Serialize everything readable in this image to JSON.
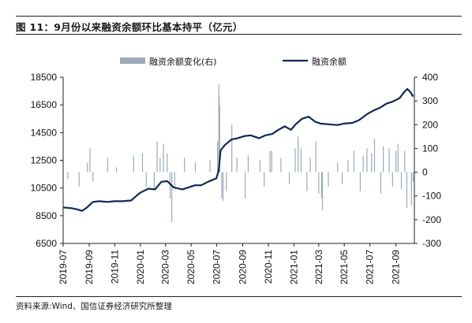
{
  "header": {
    "title": "图 11：9月份以来融资余额环比基本持平（亿元）"
  },
  "footer": {
    "source": "资料来源:Wind、国信证券经济研究所整理"
  },
  "colors": {
    "line": "#0d2a57",
    "bar": "#9aaabb"
  },
  "chart_data": {
    "type": "line+bar",
    "title": "",
    "legend": [
      {
        "name": "融资余额变化(右)",
        "type": "bar",
        "axis": "right"
      },
      {
        "name": "融资余额",
        "type": "line",
        "axis": "left"
      }
    ],
    "legend_placement": "top-center",
    "grid": false,
    "x_ticks": [
      "2019-07",
      "2019-09",
      "2019-11",
      "2020-01",
      "2020-03",
      "2020-05",
      "2020-07",
      "2020-09",
      "2020-11",
      "2021-01",
      "2021-03",
      "2021-05",
      "2021-07",
      "2021-09"
    ],
    "x_range": [
      "2019-07-01",
      "2021-10-15"
    ],
    "left_axis": {
      "ylim": [
        6500,
        18500
      ],
      "ticks": [
        6500,
        8500,
        10500,
        12500,
        14500,
        16500,
        18500
      ]
    },
    "right_axis": {
      "ylim": [
        -300,
        400
      ],
      "ticks": [
        -300,
        -200,
        -100,
        0,
        100,
        200,
        300,
        400
      ]
    },
    "series": [
      {
        "name": "融资余额",
        "axis": "left",
        "points": [
          [
            "2019-07-01",
            9100
          ],
          [
            "2019-07-20",
            9050
          ],
          [
            "2019-08-05",
            8950
          ],
          [
            "2019-08-15",
            8850
          ],
          [
            "2019-08-25",
            9050
          ],
          [
            "2019-09-10",
            9500
          ],
          [
            "2019-09-25",
            9550
          ],
          [
            "2019-10-15",
            9500
          ],
          [
            "2019-11-01",
            9550
          ],
          [
            "2019-11-20",
            9550
          ],
          [
            "2019-12-10",
            9600
          ],
          [
            "2019-12-31",
            10150
          ],
          [
            "2020-01-20",
            10450
          ],
          [
            "2020-02-05",
            10400
          ],
          [
            "2020-02-20",
            10950
          ],
          [
            "2020-03-05",
            11000
          ],
          [
            "2020-03-20",
            10550
          ],
          [
            "2020-04-10",
            10400
          ],
          [
            "2020-04-25",
            10550
          ],
          [
            "2020-05-10",
            10700
          ],
          [
            "2020-05-25",
            10700
          ],
          [
            "2020-06-10",
            10950
          ],
          [
            "2020-06-30",
            11200
          ],
          [
            "2020-07-06",
            11800
          ],
          [
            "2020-07-10",
            13200
          ],
          [
            "2020-07-20",
            13600
          ],
          [
            "2020-08-05",
            14000
          ],
          [
            "2020-08-20",
            14100
          ],
          [
            "2020-09-05",
            14250
          ],
          [
            "2020-09-20",
            14300
          ],
          [
            "2020-10-10",
            14100
          ],
          [
            "2020-10-25",
            14300
          ],
          [
            "2020-11-10",
            14400
          ],
          [
            "2020-11-25",
            14700
          ],
          [
            "2020-12-10",
            14950
          ],
          [
            "2020-12-25",
            14700
          ],
          [
            "2021-01-05",
            15100
          ],
          [
            "2021-01-20",
            15500
          ],
          [
            "2021-02-05",
            15650
          ],
          [
            "2021-02-20",
            15300
          ],
          [
            "2021-03-05",
            15150
          ],
          [
            "2021-03-25",
            15100
          ],
          [
            "2021-04-15",
            15050
          ],
          [
            "2021-04-30",
            15150
          ],
          [
            "2021-05-20",
            15200
          ],
          [
            "2021-06-05",
            15400
          ],
          [
            "2021-06-25",
            15850
          ],
          [
            "2021-07-10",
            16100
          ],
          [
            "2021-07-25",
            16300
          ],
          [
            "2021-08-10",
            16600
          ],
          [
            "2021-08-25",
            16750
          ],
          [
            "2021-09-10",
            17000
          ],
          [
            "2021-09-20",
            17400
          ],
          [
            "2021-09-28",
            17650
          ],
          [
            "2021-10-05",
            17450
          ],
          [
            "2021-10-12",
            17100
          ]
        ]
      },
      {
        "name": "融资余额变化(右)",
        "axis": "right",
        "bars": [
          [
            "2019-07-12",
            -30
          ],
          [
            "2019-08-08",
            -60
          ],
          [
            "2019-08-28",
            40
          ],
          [
            "2019-09-03",
            100
          ],
          [
            "2019-09-10",
            -40
          ],
          [
            "2019-10-15",
            60
          ],
          [
            "2019-11-05",
            20
          ],
          [
            "2019-12-16",
            70
          ],
          [
            "2020-01-06",
            80
          ],
          [
            "2020-01-15",
            -60
          ],
          [
            "2020-02-03",
            -70
          ],
          [
            "2020-02-10",
            130
          ],
          [
            "2020-02-17",
            60
          ],
          [
            "2020-02-25",
            120
          ],
          [
            "2020-03-05",
            80
          ],
          [
            "2020-03-12",
            -110
          ],
          [
            "2020-03-16",
            -210
          ],
          [
            "2020-03-23",
            -70
          ],
          [
            "2020-04-15",
            60
          ],
          [
            "2020-05-11",
            40
          ],
          [
            "2020-06-15",
            50
          ],
          [
            "2020-07-03",
            130
          ],
          [
            "2020-07-06",
            370
          ],
          [
            "2020-07-07",
            320
          ],
          [
            "2020-07-08",
            280
          ],
          [
            "2020-07-13",
            -110
          ],
          [
            "2020-07-16",
            -120
          ],
          [
            "2020-07-24",
            -80
          ],
          [
            "2020-08-06",
            200
          ],
          [
            "2020-08-18",
            60
          ],
          [
            "2020-09-07",
            -110
          ],
          [
            "2020-09-14",
            70
          ],
          [
            "2020-10-12",
            50
          ],
          [
            "2020-10-22",
            -60
          ],
          [
            "2020-11-05",
            90
          ],
          [
            "2020-11-09",
            90
          ],
          [
            "2020-12-01",
            60
          ],
          [
            "2020-12-21",
            -50
          ],
          [
            "2021-01-04",
            100
          ],
          [
            "2021-01-11",
            150
          ],
          [
            "2021-01-18",
            100
          ],
          [
            "2021-02-01",
            -80
          ],
          [
            "2021-02-09",
            60
          ],
          [
            "2021-02-22",
            130
          ],
          [
            "2021-03-01",
            -90
          ],
          [
            "2021-03-08",
            -110
          ],
          [
            "2021-03-10",
            -160
          ],
          [
            "2021-03-24",
            -60
          ],
          [
            "2021-04-15",
            40
          ],
          [
            "2021-04-26",
            -50
          ],
          [
            "2021-05-10",
            50
          ],
          [
            "2021-05-24",
            90
          ],
          [
            "2021-06-08",
            -80
          ],
          [
            "2021-06-15",
            70
          ],
          [
            "2021-06-24",
            100
          ],
          [
            "2021-07-05",
            80
          ],
          [
            "2021-07-12",
            140
          ],
          [
            "2021-07-27",
            -90
          ],
          [
            "2021-08-02",
            110
          ],
          [
            "2021-08-16",
            100
          ],
          [
            "2021-08-24",
            -60
          ],
          [
            "2021-09-01",
            90
          ],
          [
            "2021-09-06",
            120
          ],
          [
            "2021-09-14",
            -70
          ],
          [
            "2021-09-22",
            90
          ],
          [
            "2021-09-27",
            -150
          ],
          [
            "2021-10-08",
            -140
          ],
          [
            "2021-10-12",
            -40
          ]
        ]
      }
    ]
  }
}
